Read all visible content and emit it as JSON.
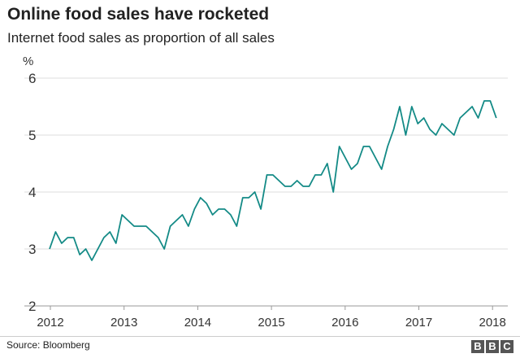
{
  "chart_data": {
    "type": "line",
    "title": "Online food sales have rocketed",
    "subtitle": "Internet food sales as proportion of all sales",
    "ylabel": "%",
    "ylim": [
      2,
      6
    ],
    "yticks": [
      2,
      3,
      4,
      5,
      6
    ],
    "xticks": [
      "2012",
      "2013",
      "2014",
      "2015",
      "2016",
      "2017",
      "2018"
    ],
    "x_start": "2012-01",
    "frequency": "monthly",
    "grid": true,
    "line_color": "#138a86",
    "series": [
      {
        "values": [
          3.0,
          3.3,
          3.1,
          3.2,
          3.2,
          2.9,
          3.0,
          2.8,
          3.0,
          3.2,
          3.3,
          3.1,
          3.6,
          3.5,
          3.4,
          3.4,
          3.4,
          3.3,
          3.2,
          3.0,
          3.4,
          3.5,
          3.6,
          3.4,
          3.7,
          3.9,
          3.8,
          3.6,
          3.7,
          3.7,
          3.6,
          3.4,
          3.9,
          3.9,
          4.0,
          3.7,
          4.3,
          4.3,
          4.2,
          4.1,
          4.1,
          4.2,
          4.1,
          4.1,
          4.3,
          4.3,
          4.5,
          4.0,
          4.8,
          4.6,
          4.4,
          4.5,
          4.8,
          4.8,
          4.6,
          4.4,
          4.8,
          5.1,
          5.5,
          5.0,
          5.5,
          5.2,
          5.3,
          5.1,
          5.0,
          5.2,
          5.1,
          5.0,
          5.3,
          5.4,
          5.5,
          5.3,
          5.6,
          5.6,
          5.3
        ]
      }
    ]
  },
  "source": "Source: Bloomberg",
  "logo": [
    "B",
    "B",
    "C"
  ]
}
